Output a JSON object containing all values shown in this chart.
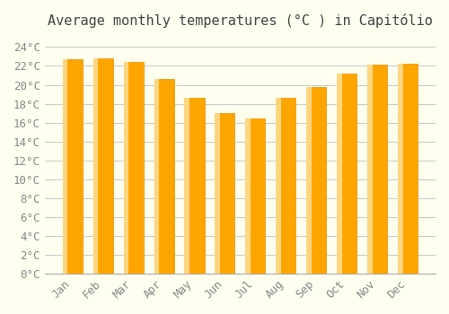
{
  "title": "Average monthly temperatures (°C ) in Capitólio",
  "months": [
    "Jan",
    "Feb",
    "Mar",
    "Apr",
    "May",
    "Jun",
    "Jul",
    "Aug",
    "Sep",
    "Oct",
    "Nov",
    "Dec"
  ],
  "values": [
    22.7,
    22.8,
    22.4,
    20.6,
    18.6,
    17.0,
    16.4,
    18.6,
    19.8,
    21.2,
    22.1,
    22.2
  ],
  "bar_color_main": "#FFA500",
  "bar_color_light": "#FFD580",
  "background_color": "#FFFFF0",
  "grid_color": "#cccccc",
  "ytick_labels": [
    "0°C",
    "2°C",
    "4°C",
    "6°C",
    "8°C",
    "10°C",
    "12°C",
    "14°C",
    "16°C",
    "18°C",
    "20°C",
    "22°C",
    "24°C"
  ],
  "ytick_values": [
    0,
    2,
    4,
    6,
    8,
    10,
    12,
    14,
    16,
    18,
    20,
    22,
    24
  ],
  "ylim": [
    0,
    25
  ],
  "title_fontsize": 11,
  "tick_fontsize": 9
}
